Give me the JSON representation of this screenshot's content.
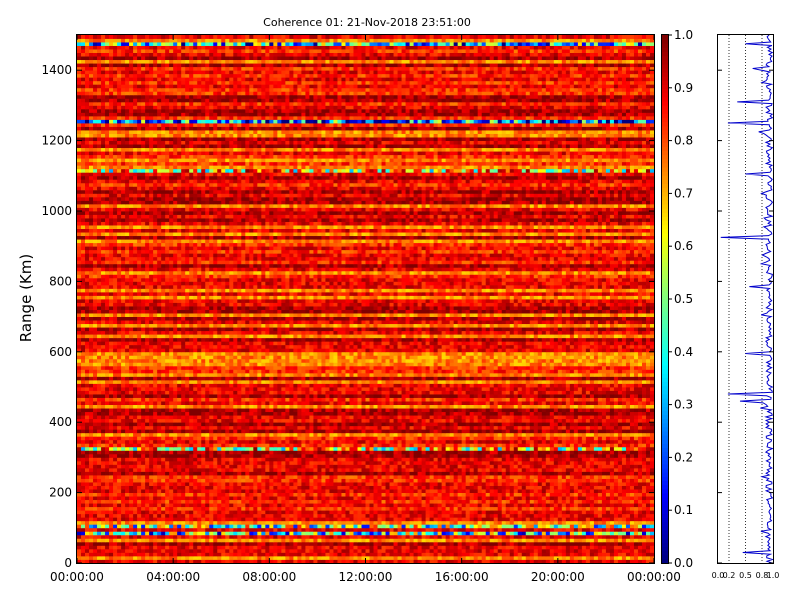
{
  "chart_data": [
    {
      "type": "heatmap",
      "title": "Coherence 01: 21-Nov-2018 23:51:00",
      "xlabel": "",
      "ylabel": "Range (Km)",
      "x_tick_labels": [
        "00:00:00",
        "04:00:00",
        "08:00:00",
        "12:00:00",
        "16:00:00",
        "20:00:00",
        "00:00:00"
      ],
      "y_ticks": [
        0,
        200,
        400,
        600,
        800,
        1000,
        1200,
        1400
      ],
      "ylim": [
        0,
        1500
      ],
      "x_range_hours": [
        0,
        24
      ],
      "colorscale": "jet",
      "colorbar": {
        "ticks": [
          "0.0",
          "0.1",
          "0.2",
          "0.3",
          "0.4",
          "0.5",
          "0.6",
          "0.7",
          "0.8",
          "0.9",
          "1.0"
        ],
        "range": [
          0,
          1
        ]
      },
      "low_coherence_bands_km": [
        {
          "range": 85,
          "level": 0.25
        },
        {
          "range": 105,
          "level": 0.35
        },
        {
          "range": 325,
          "level": 0.5
        },
        {
          "range": 1110,
          "level": 0.5
        },
        {
          "range": 1250,
          "level": 0.1
        },
        {
          "range": 1475,
          "level": 0.2
        }
      ],
      "grid": false
    },
    {
      "type": "line",
      "title": "",
      "xlabel": "",
      "ylabel": "",
      "x_tick_labels": [
        "0.0",
        "0.2",
        "0.5",
        "0.8",
        "1.0"
      ],
      "xlim": [
        0,
        1
      ],
      "ylim": [
        0,
        1500
      ],
      "series": [
        {
          "color": "#0000cc",
          "y_step_km": 5,
          "typical_value": 0.93,
          "dips": [
            {
              "range": 28,
              "value": 0.45
            },
            {
              "range": 88,
              "value": 0.78
            },
            {
              "range": 438,
              "value": 0.77
            },
            {
              "range": 455,
              "value": 0.82
            },
            {
              "range": 460,
              "value": 0.4
            },
            {
              "range": 478,
              "value": 0.18
            },
            {
              "range": 595,
              "value": 0.5
            },
            {
              "range": 785,
              "value": 0.57
            },
            {
              "range": 925,
              "value": 0.05
            },
            {
              "range": 980,
              "value": 0.84
            },
            {
              "range": 1105,
              "value": 0.5
            },
            {
              "range": 1250,
              "value": 0.18
            },
            {
              "range": 1310,
              "value": 0.35
            },
            {
              "range": 1365,
              "value": 0.8
            },
            {
              "range": 1406,
              "value": 0.63
            },
            {
              "range": 1475,
              "value": 0.5
            }
          ]
        }
      ],
      "vertical_reference_lines": [
        0.2,
        0.5,
        0.8
      ],
      "grid": "dotted-vertical"
    }
  ]
}
